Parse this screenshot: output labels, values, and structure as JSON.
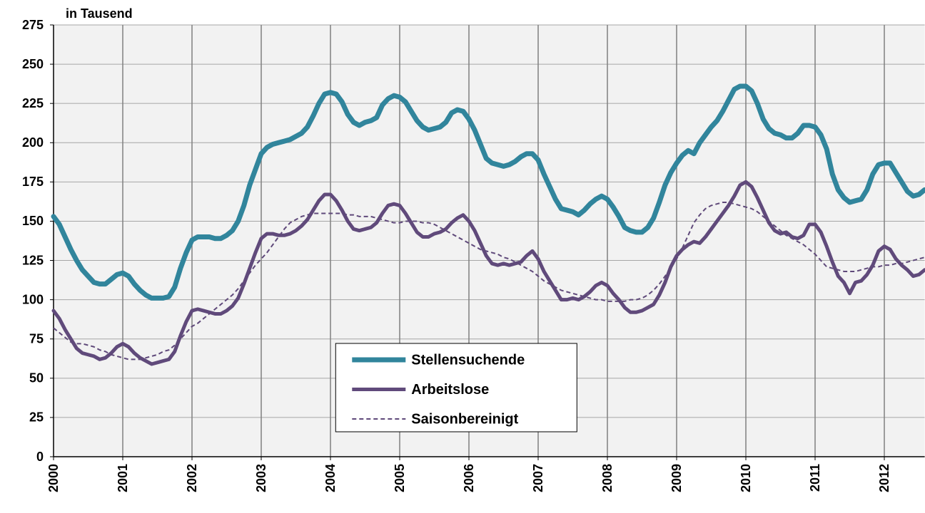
{
  "chart_data": {
    "type": "line",
    "title": "in Tausend",
    "categories": [
      "2000",
      null,
      null,
      null,
      null,
      null,
      null,
      null,
      null,
      null,
      null,
      null,
      "2001",
      null,
      null,
      null,
      null,
      null,
      null,
      null,
      null,
      null,
      null,
      null,
      "2002",
      null,
      null,
      null,
      null,
      null,
      null,
      null,
      null,
      null,
      null,
      null,
      "2003",
      null,
      null,
      null,
      null,
      null,
      null,
      null,
      null,
      null,
      null,
      null,
      "2004",
      null,
      null,
      null,
      null,
      null,
      null,
      null,
      null,
      null,
      null,
      null,
      "2005",
      null,
      null,
      null,
      null,
      null,
      null,
      null,
      null,
      null,
      null,
      null,
      "2006",
      null,
      null,
      null,
      null,
      null,
      null,
      null,
      null,
      null,
      null,
      null,
      "2007",
      null,
      null,
      null,
      null,
      null,
      null,
      null,
      null,
      null,
      null,
      null,
      "2008",
      null,
      null,
      null,
      null,
      null,
      null,
      null,
      null,
      null,
      null,
      null,
      "2009",
      null,
      null,
      null,
      null,
      null,
      null,
      null,
      null,
      null,
      null,
      null,
      "2010",
      null,
      null,
      null,
      null,
      null,
      null,
      null,
      null,
      null,
      null,
      null,
      "2011",
      null,
      null,
      null,
      null,
      null,
      null,
      null,
      null,
      null,
      null,
      null,
      "2012",
      null,
      null,
      null,
      null,
      null,
      null,
      null
    ],
    "series": [
      {
        "name": "Stellensuchende",
        "color": "#31859c",
        "values": [
          153,
          148,
          140,
          132,
          125,
          119,
          115,
          111,
          110,
          110,
          113,
          116,
          117,
          115,
          110,
          106,
          103,
          101,
          101,
          101,
          102,
          108,
          120,
          130,
          138,
          140,
          140,
          140,
          139,
          139,
          141,
          144,
          150,
          160,
          173,
          183,
          193,
          197,
          199,
          200,
          201,
          202,
          204,
          206,
          210,
          217,
          225,
          231,
          232,
          231,
          226,
          218,
          213,
          211,
          213,
          214,
          216,
          224,
          228,
          230,
          229,
          226,
          220,
          214,
          210,
          208,
          209,
          210,
          213,
          219,
          221,
          220,
          215,
          208,
          199,
          190,
          187,
          186,
          185,
          186,
          188,
          191,
          193,
          193,
          189,
          180,
          172,
          164,
          158,
          157,
          156,
          154,
          157,
          161,
          164,
          166,
          164,
          159,
          153,
          146,
          144,
          143,
          143,
          146,
          152,
          162,
          173,
          181,
          187,
          192,
          195,
          193,
          200,
          205,
          210,
          214,
          220,
          227,
          234,
          236,
          236,
          233,
          225,
          215,
          209,
          206,
          205,
          203,
          203,
          206,
          211,
          211,
          210,
          205,
          196,
          180,
          170,
          165,
          162,
          163,
          164,
          170,
          180,
          186,
          187,
          187,
          181,
          175,
          169,
          166,
          167,
          170
        ]
      },
      {
        "name": "Arbeitslose",
        "color": "#604a7b",
        "values": [
          93,
          88,
          81,
          75,
          69,
          66,
          65,
          64,
          62,
          63,
          66,
          70,
          72,
          70,
          66,
          63,
          61,
          59,
          60,
          61,
          62,
          67,
          77,
          86,
          93,
          94,
          93,
          92,
          91,
          91,
          93,
          96,
          101,
          110,
          120,
          130,
          139,
          142,
          142,
          141,
          141,
          142,
          144,
          147,
          151,
          157,
          163,
          167,
          167,
          163,
          157,
          150,
          145,
          144,
          145,
          146,
          149,
          155,
          160,
          161,
          160,
          155,
          149,
          143,
          140,
          140,
          142,
          143,
          145,
          149,
          152,
          154,
          150,
          144,
          136,
          128,
          123,
          122,
          123,
          122,
          123,
          124,
          128,
          131,
          126,
          118,
          112,
          106,
          100,
          100,
          101,
          100,
          102,
          105,
          109,
          111,
          109,
          104,
          100,
          95,
          92,
          92,
          93,
          95,
          97,
          103,
          111,
          121,
          128,
          132,
          135,
          137,
          136,
          140,
          145,
          150,
          155,
          160,
          166,
          173,
          175,
          172,
          165,
          157,
          149,
          144,
          142,
          143,
          140,
          139,
          141,
          148,
          148,
          143,
          134,
          124,
          115,
          111,
          104,
          111,
          112,
          116,
          122,
          131,
          134,
          132,
          126,
          122,
          119,
          115,
          116,
          119
        ]
      },
      {
        "name": "Saisonbereinigt",
        "color": "#5f497a",
        "dash": true,
        "values": [
          82,
          79,
          76,
          73,
          72,
          72,
          71,
          70,
          68,
          67,
          65,
          64,
          63,
          62,
          62,
          62,
          63,
          64,
          65,
          67,
          68,
          71,
          75,
          79,
          83,
          85,
          88,
          91,
          94,
          97,
          100,
          103,
          107,
          112,
          117,
          122,
          126,
          130,
          135,
          140,
          145,
          149,
          151,
          153,
          154,
          155,
          155,
          155,
          155,
          155,
          155,
          154,
          154,
          153,
          153,
          153,
          152,
          151,
          150,
          149,
          149,
          150,
          150,
          150,
          149,
          149,
          148,
          146,
          144,
          142,
          140,
          138,
          136,
          134,
          132,
          131,
          130,
          129,
          127,
          126,
          124,
          122,
          120,
          118,
          115,
          112,
          110,
          108,
          106,
          105,
          104,
          103,
          102,
          101,
          100,
          100,
          99,
          99,
          99,
          99,
          100,
          100,
          101,
          103,
          106,
          110,
          115,
          120,
          126,
          133,
          141,
          149,
          154,
          158,
          160,
          161,
          162,
          162,
          161,
          160,
          159,
          158,
          156,
          153,
          150,
          147,
          144,
          141,
          139,
          137,
          135,
          132,
          129,
          125,
          121,
          120,
          119,
          118,
          118,
          118,
          119,
          120,
          121,
          121,
          122,
          122,
          123,
          123,
          124,
          125,
          126,
          127
        ]
      }
    ],
    "ylim": [
      0,
      275
    ],
    "yticks": [
      0,
      25,
      50,
      75,
      100,
      125,
      150,
      175,
      200,
      225,
      250,
      275
    ],
    "grid": true,
    "legend_position": "bottom"
  }
}
